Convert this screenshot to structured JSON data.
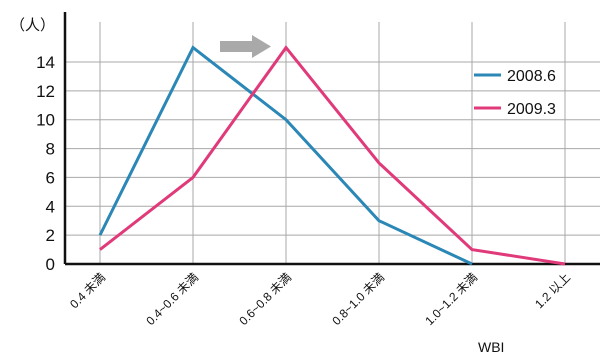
{
  "chart_data": {
    "type": "line",
    "y_unit": "（人）",
    "xlabel": "WBI",
    "ylabel": "",
    "categories": [
      "0.4 未満",
      "0.4~0.6 未満",
      "0.6~0.8 未満",
      "0.8~1.0 未満",
      "1.0~1.2 未満",
      "1.2 以上"
    ],
    "ylim": [
      0,
      15
    ],
    "yticks": [
      0,
      2,
      4,
      6,
      8,
      10,
      12,
      14
    ],
    "grid": true,
    "legend_position": "right",
    "series": [
      {
        "name": "2008.6",
        "color": "#2a87b6",
        "values": [
          2,
          15,
          10,
          3,
          0,
          null
        ]
      },
      {
        "name": "2009.3",
        "color": "#e03a7a",
        "values": [
          1,
          6,
          15,
          7,
          1,
          0
        ]
      }
    ],
    "annotation": {
      "type": "arrow",
      "color": "#a9a9a9",
      "meaning": "shift"
    }
  }
}
